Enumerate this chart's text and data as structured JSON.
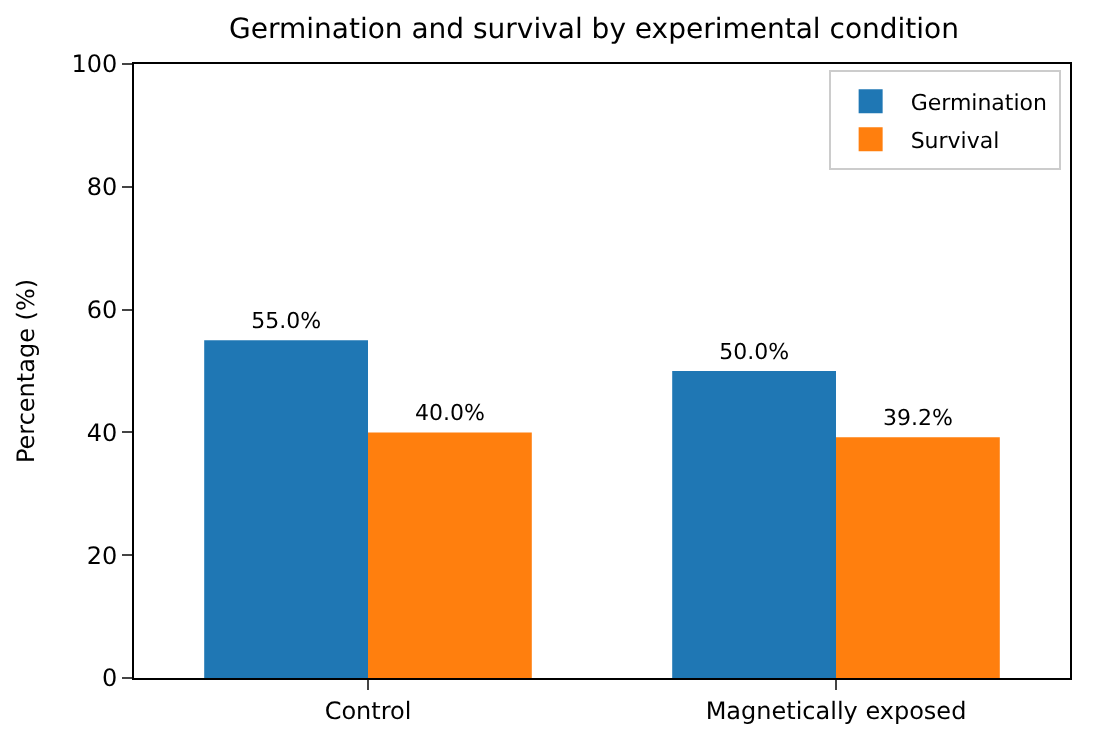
{
  "chart_data": {
    "type": "bar",
    "title": "Germination and survival by experimental condition",
    "ylabel": "Percentage (%)",
    "categories": [
      "Control",
      "Magnetically exposed"
    ],
    "series": [
      {
        "name": "Germination",
        "color": "#1f77b4",
        "values": [
          55.0,
          50.0
        ],
        "value_labels": [
          "55.0%",
          "50.0%"
        ]
      },
      {
        "name": "Survival",
        "color": "#ff7f0e",
        "values": [
          40.0,
          39.2
        ],
        "value_labels": [
          "40.0%",
          "39.2%"
        ]
      }
    ],
    "ylim": [
      0,
      100
    ],
    "yticks": [
      0,
      20,
      40,
      60,
      80,
      100
    ],
    "legend": "top right"
  }
}
